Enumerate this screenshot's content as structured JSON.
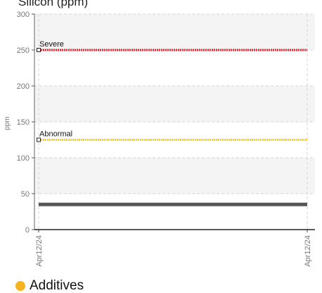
{
  "chart_data": {
    "type": "line",
    "title": "Silicon (ppm)",
    "ylabel": "ppm",
    "xlabel": "",
    "ylim": [
      0,
      300
    ],
    "yticks": [
      0,
      50,
      100,
      150,
      200,
      250,
      300
    ],
    "categories": [
      "Apr12/24",
      "Apr12/24"
    ],
    "grid": true,
    "series": [
      {
        "name": "",
        "values": [
          35,
          35
        ],
        "color": "#555555",
        "style": "solid"
      }
    ],
    "thresholds": [
      {
        "label": "Severe",
        "value": 250,
        "color": "#e8262b"
      },
      {
        "label": "Abnormal",
        "value": 125,
        "color": "#f2d21b"
      }
    ],
    "legend": {
      "position": "bottom-left",
      "label": "Additives",
      "color": "#f5b51e"
    }
  }
}
